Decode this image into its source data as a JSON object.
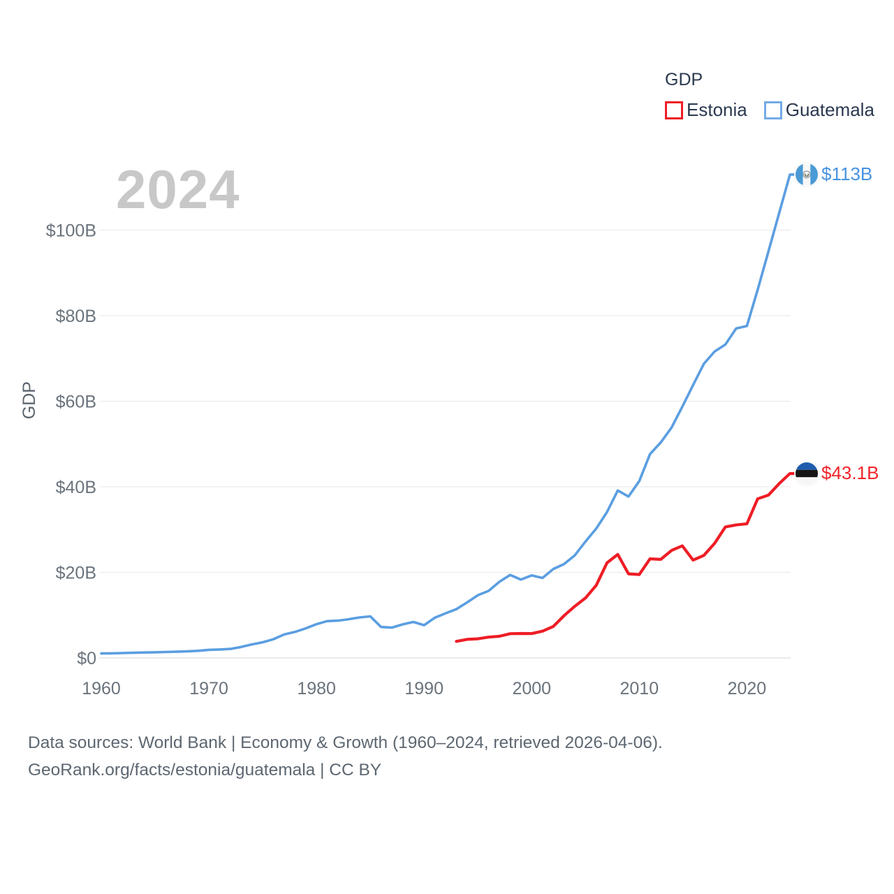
{
  "watermark_year": "2024",
  "legend": {
    "title": "GDP",
    "items": [
      {
        "label": "Estonia",
        "color": "#ee1d25"
      },
      {
        "label": "Guatemala",
        "color": "#74aae6"
      }
    ]
  },
  "y_axis": {
    "title": "GDP",
    "ticks": [
      "$0",
      "$20B",
      "$40B",
      "$60B",
      "$80B",
      "$100B"
    ]
  },
  "x_axis": {
    "ticks": [
      "1960",
      "1970",
      "1980",
      "1990",
      "2000",
      "2010",
      "2020"
    ]
  },
  "end_labels": {
    "guatemala": {
      "value": "$113B",
      "color": "#4793e0",
      "icon": "guatemala-flag-icon"
    },
    "estonia": {
      "value": "$43.1B",
      "color": "#f1232b",
      "icon": "estonia-flag-icon"
    }
  },
  "footer": {
    "line1": "Data sources: World Bank | Economy & Growth (1960–2024, retrieved 2026-04-06).",
    "line2": "GeoRank.org/facts/estonia/guatemala | CC BY"
  },
  "colors": {
    "background": "#ffffff",
    "grid": "#ececec",
    "zero_line": "#d9dde0",
    "axis_text": "#6a737c",
    "legend_text": "#2b3950",
    "watermark": "#c8c8c8",
    "footer_text": "#5d6771",
    "flag_estonia": [
      "#1e5cae",
      "#151515",
      "#f6f6f6"
    ],
    "flag_guatemala": [
      "#4b9ad5",
      "#f8f8f8",
      "#9fa6ac",
      "#6b7355"
    ]
  },
  "chart_data": {
    "type": "line",
    "title": "GDP",
    "xlabel": "",
    "ylabel": "GDP",
    "unit": "billion current US$",
    "x_range": [
      1960,
      2024
    ],
    "ylim": [
      0,
      115
    ],
    "y_ticks_b": [
      0,
      20,
      40,
      60,
      80,
      100
    ],
    "x_ticks": [
      1960,
      1970,
      1980,
      1990,
      2000,
      2010,
      2020
    ],
    "grid": "horizontal",
    "legend_position": "top-right",
    "series": [
      {
        "name": "Guatemala",
        "color": "#5b9ee1",
        "start_year": 1960,
        "end_value_label": "$113B",
        "values": [
          1.04,
          1.08,
          1.14,
          1.2,
          1.27,
          1.33,
          1.39,
          1.45,
          1.53,
          1.66,
          1.9,
          1.98,
          2.1,
          2.57,
          3.16,
          3.65,
          4.37,
          5.48,
          6.07,
          6.9,
          7.88,
          8.61,
          8.72,
          9.04,
          9.47,
          9.72,
          7.23,
          7.08,
          7.84,
          8.41,
          7.65,
          9.41,
          10.44,
          11.4,
          12.98,
          14.66,
          15.67,
          17.79,
          19.4,
          18.32,
          19.29,
          18.7,
          20.78,
          21.92,
          23.97,
          27.21,
          30.23,
          34.11,
          39.14,
          37.73,
          41.34,
          47.65,
          50.39,
          53.85,
          58.72,
          63.77,
          68.76,
          71.64,
          73.28,
          77.02,
          77.6,
          86.06,
          95.0,
          104.0,
          113.0
        ]
      },
      {
        "name": "Estonia",
        "color": "#ee1d25",
        "start_year": 1993,
        "end_value_label": "$43.1B",
        "values": [
          3.87,
          4.34,
          4.47,
          4.87,
          5.06,
          5.67,
          5.72,
          5.69,
          6.25,
          7.35,
          9.86,
          12.06,
          14.01,
          16.98,
          22.23,
          24.19,
          19.65,
          19.49,
          23.17,
          23.04,
          25.13,
          26.21,
          22.87,
          23.96,
          26.79,
          30.63,
          31.08,
          31.37,
          37.19,
          38.05,
          40.75,
          43.1
        ]
      }
    ]
  }
}
